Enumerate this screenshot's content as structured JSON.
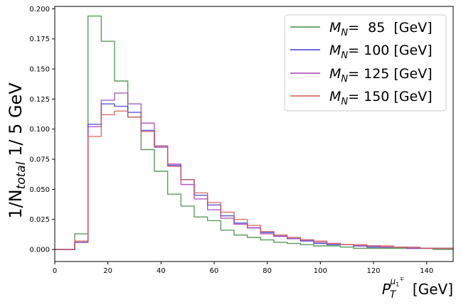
{
  "chart_data": {
    "type": "line",
    "step": true,
    "xlabel_main": "P",
    "xlabel_sub": "T",
    "xlabel_sup": "μ",
    "xlabel_sup_sub": "1",
    "xlabel_sup_sup": "∓",
    "xlabel_unit": "[GeV]",
    "ylabel_main": "1/N",
    "ylabel_sub": "total",
    "ylabel_rest": " 1/ 5 GeV",
    "xlim": [
      0,
      150
    ],
    "ylim": [
      -0.01,
      0.202
    ],
    "xticks": [
      0,
      20,
      40,
      60,
      80,
      100,
      120,
      140
    ],
    "xtick_labels": [
      "0",
      "20",
      "40",
      "60",
      "80",
      "100",
      "120",
      "140"
    ],
    "yticks": [
      0.0,
      0.025,
      0.05,
      0.075,
      0.1,
      0.125,
      0.15,
      0.175,
      0.2
    ],
    "ytick_labels": [
      "0.000",
      "0.025",
      "0.050",
      "0.075",
      "0.100",
      "0.125",
      "0.150",
      "0.175",
      "0.200"
    ],
    "grid": false,
    "legend_position": "top-right",
    "bin_edges": [
      0,
      7.5,
      12.5,
      17.5,
      22.5,
      27.5,
      32.5,
      37.5,
      42.5,
      47.5,
      52.5,
      57.5,
      62.5,
      67.5,
      72.5,
      77.5,
      82.5,
      87.5,
      92.5,
      97.5,
      102.5,
      107.5,
      112.5,
      117.5,
      122.5,
      127.5,
      132.5,
      137.5,
      142.5,
      147.5,
      150
    ],
    "series": [
      {
        "legend_sym": "M",
        "legend_sub": "N",
        "legend_value": "=  85  [GeV]",
        "color": "#3d8c3d",
        "values": [
          0.0,
          0.013,
          0.194,
          0.173,
          0.14,
          0.11,
          0.083,
          0.065,
          0.046,
          0.036,
          0.027,
          0.024,
          0.016,
          0.012,
          0.01,
          0.008,
          0.006,
          0.005,
          0.004,
          0.003,
          0.003,
          0.002,
          0.001,
          0.001,
          0.001,
          0.001,
          0.001,
          0.001,
          0.0,
          0.0
        ]
      },
      {
        "legend_sym": "M",
        "legend_sub": "N",
        "legend_value": "= 100 [GeV]",
        "color": "#3a3ad4",
        "values": [
          0.0,
          0.006,
          0.104,
          0.121,
          0.119,
          0.114,
          0.099,
          0.086,
          0.07,
          0.058,
          0.045,
          0.037,
          0.028,
          0.022,
          0.018,
          0.014,
          0.011,
          0.009,
          0.007,
          0.005,
          0.004,
          0.004,
          0.003,
          0.002,
          0.002,
          0.002,
          0.001,
          0.001,
          0.001,
          0.001
        ]
      },
      {
        "legend_sym": "M",
        "legend_sub": "N",
        "legend_value": "= 125 [GeV]",
        "color": "#a640b0",
        "values": [
          0.0,
          0.006,
          0.102,
          0.124,
          0.13,
          0.121,
          0.105,
          0.085,
          0.071,
          0.054,
          0.042,
          0.033,
          0.026,
          0.021,
          0.018,
          0.013,
          0.011,
          0.009,
          0.008,
          0.006,
          0.005,
          0.004,
          0.003,
          0.003,
          0.002,
          0.002,
          0.001,
          0.001,
          0.001,
          0.001
        ]
      },
      {
        "legend_sym": "M",
        "legend_sub": "N",
        "legend_value": "= 150 [GeV]",
        "color": "#d05a52",
        "values": [
          0.0,
          0.007,
          0.094,
          0.112,
          0.115,
          0.11,
          0.098,
          0.086,
          0.069,
          0.058,
          0.047,
          0.039,
          0.031,
          0.025,
          0.02,
          0.015,
          0.012,
          0.01,
          0.008,
          0.007,
          0.005,
          0.004,
          0.004,
          0.003,
          0.003,
          0.002,
          0.002,
          0.001,
          0.001,
          0.001
        ]
      }
    ]
  }
}
